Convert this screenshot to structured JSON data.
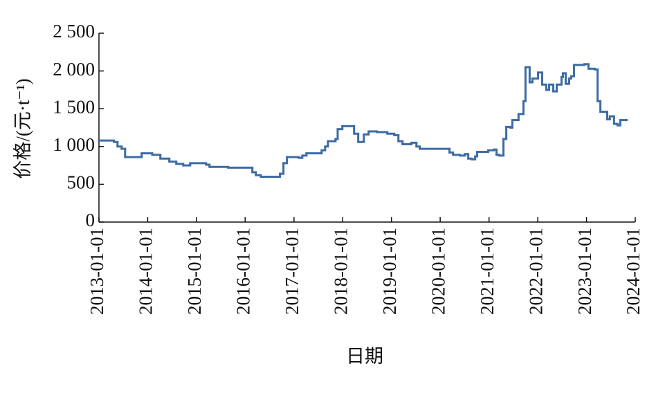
{
  "chart_data": {
    "type": "line",
    "step": "post",
    "color": "#3d6ba3",
    "x_label": "日期",
    "y_label": "价格/(元·t⁻¹)",
    "xlim": [
      "2013-01-01",
      "2024-01-01"
    ],
    "xticks": [
      "2013-01-01",
      "2014-01-01",
      "2015-01-01",
      "2016-01-01",
      "2017-01-01",
      "2018-01-01",
      "2019-01-01",
      "2020-01-01",
      "2021-01-01",
      "2022-01-01",
      "2023-01-01",
      "2024-01-01"
    ],
    "ylim": [
      0,
      2500
    ],
    "yticks": [
      0,
      500,
      {
        "value": 1000,
        "label": "1 000"
      },
      {
        "value": 1500,
        "label": "1 500"
      },
      {
        "value": 2000,
        "label": "2 000"
      },
      {
        "value": 2500,
        "label": "2 500"
      }
    ],
    "x": [
      "2013-01-01",
      "2013-04-23",
      "2013-05-20",
      "2013-06-20",
      "2013-07-16",
      "2013-11-17",
      "2014-02-04",
      "2014-04-06",
      "2014-06-12",
      "2014-08-03",
      "2014-09-24",
      "2014-11-15",
      "2015-03-14",
      "2015-04-09",
      "2015-08-27",
      "2016-02-24",
      "2016-03-21",
      "2016-04-27",
      "2016-09-18",
      "2016-10-14",
      "2016-11-09",
      "2017-02-06",
      "2017-03-04",
      "2017-04-04",
      "2017-07-27",
      "2017-08-22",
      "2017-09-12",
      "2017-11-08",
      "2017-11-24",
      "2017-12-29",
      "2018-03-27",
      "2018-04-27",
      "2018-06-08",
      "2018-07-14",
      "2018-09-14",
      "2018-12-01",
      "2019-01-22",
      "2019-02-22",
      "2019-03-25",
      "2019-05-31",
      "2019-07-07",
      "2019-08-01",
      "2020-03-11",
      "2020-04-06",
      "2020-05-28",
      "2020-07-03",
      "2020-07-29",
      "2020-08-24",
      "2020-09-19",
      "2020-10-04",
      "2020-12-26",
      "2021-02-06",
      "2021-02-26",
      "2021-03-19",
      "2021-04-19",
      "2021-05-10",
      "2021-06-09",
      "2021-06-25",
      "2021-08-10",
      "2021-09-16",
      "2021-10-01",
      "2021-11-01",
      "2021-11-22",
      "2022-01-03",
      "2022-02-03",
      "2022-03-06",
      "2022-03-27",
      "2022-04-27",
      "2022-05-23",
      "2022-06-28",
      "2022-07-08",
      "2022-07-29",
      "2022-08-24",
      "2022-09-08",
      "2022-09-29",
      "2022-12-16",
      "2023-01-16",
      "2023-03-04",
      "2023-03-25",
      "2023-04-15",
      "2023-06-05",
      "2023-06-25",
      "2023-07-26",
      "2023-08-21",
      "2023-09-11",
      "2023-10-23"
    ],
    "values": [
      1080,
      1060,
      1000,
      970,
      860,
      910,
      890,
      840,
      800,
      770,
      750,
      780,
      760,
      730,
      720,
      660,
      620,
      600,
      640,
      780,
      860,
      850,
      880,
      910,
      950,
      1000,
      1070,
      1100,
      1230,
      1270,
      1170,
      1060,
      1160,
      1200,
      1190,
      1170,
      1150,
      1070,
      1030,
      1050,
      1000,
      970,
      920,
      890,
      880,
      900,
      840,
      830,
      870,
      930,
      950,
      960,
      890,
      880,
      1100,
      1260,
      1250,
      1350,
      1430,
      1600,
      2050,
      1850,
      1900,
      1980,
      1820,
      1750,
      1820,
      1730,
      1820,
      1920,
      1970,
      1830,
      1900,
      1930,
      2080,
      2090,
      2030,
      2020,
      1600,
      1460,
      1360,
      1400,
      1300,
      1280,
      1350,
      1350
    ]
  }
}
